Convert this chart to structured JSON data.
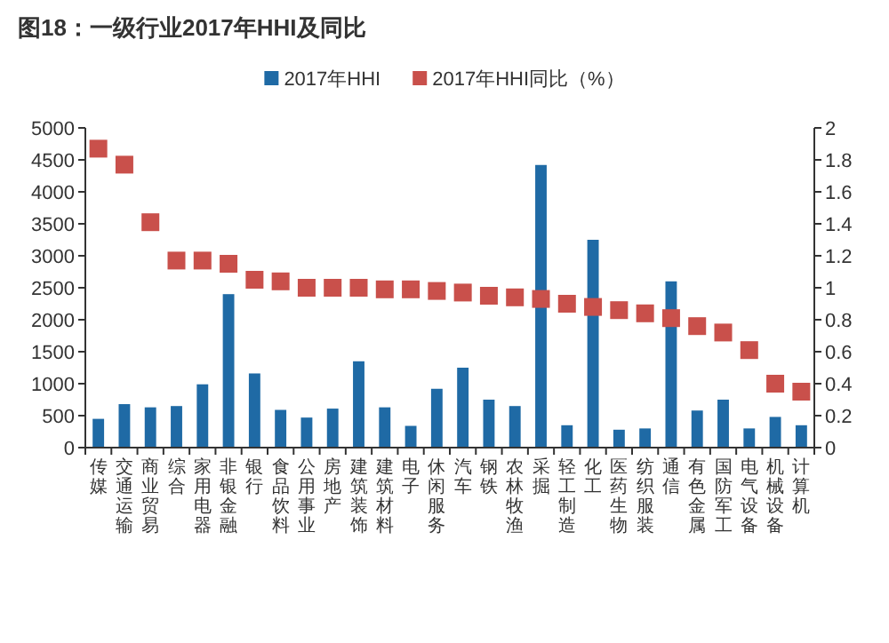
{
  "chart_data": {
    "type": "bar",
    "title": "图18：一级行业2017年HHI及同比",
    "categories": [
      "传媒",
      "交通运输",
      "商业贸易",
      "综合",
      "家用电器",
      "非银金融",
      "银行",
      "食品饮料",
      "公用事业",
      "房地产",
      "建筑装饰",
      "建筑材料",
      "电子",
      "休闲服务",
      "汽车",
      "钢铁",
      "农林牧渔",
      "采掘",
      "轻工制造",
      "化工",
      "医药生物",
      "纺织服装",
      "通信",
      "有色金属",
      "国防军工",
      "电气设备",
      "机械设备",
      "计算机"
    ],
    "series": [
      {
        "name": "2017年HHI",
        "color": "#1f6aa5",
        "values": [
          450,
          680,
          630,
          650,
          990,
          2400,
          1160,
          590,
          470,
          610,
          1350,
          630,
          340,
          920,
          1250,
          750,
          650,
          4420,
          350,
          3250,
          280,
          300,
          2600,
          580,
          750,
          300,
          480,
          350
        ]
      },
      {
        "name": "2017年HHI同比（%）",
        "type": "scatter",
        "axis": "y2",
        "marker": "square",
        "color": "#c9504b",
        "values": [
          1.87,
          1.77,
          1.41,
          1.17,
          1.17,
          1.15,
          1.05,
          1.04,
          1.0,
          1.0,
          1.0,
          0.99,
          0.99,
          0.98,
          0.97,
          0.95,
          0.94,
          0.93,
          0.9,
          0.88,
          0.86,
          0.84,
          0.81,
          0.76,
          0.72,
          0.61,
          0.4,
          0.35
        ]
      }
    ],
    "ylim": [
      0,
      5000
    ],
    "yticks": [
      0,
      500,
      1000,
      1500,
      2000,
      2500,
      3000,
      3500,
      4000,
      4500,
      5000
    ],
    "y2lim": [
      0,
      2
    ],
    "y2ticks": [
      0,
      0.2,
      0.4,
      0.6,
      0.8,
      1,
      1.2,
      1.4,
      1.6,
      1.8,
      2
    ],
    "legend": "top",
    "grid": false
  }
}
